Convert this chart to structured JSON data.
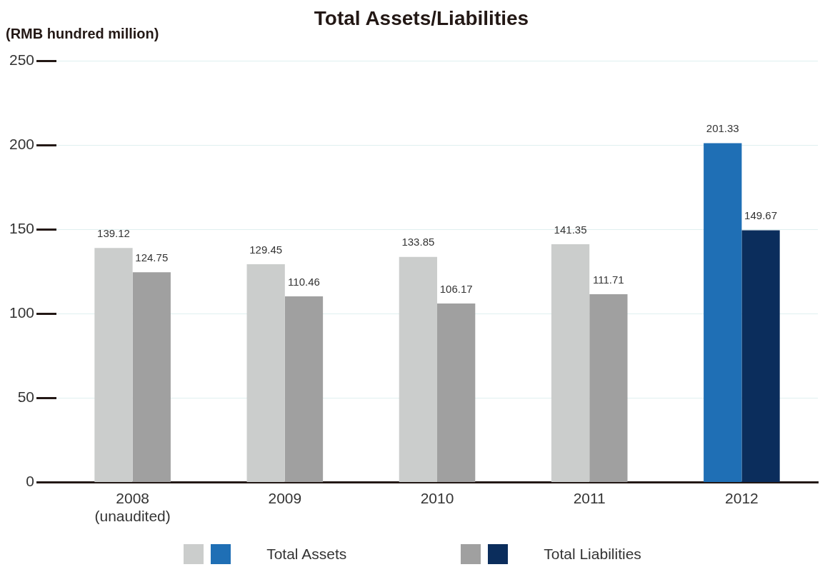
{
  "chart_data": {
    "type": "bar",
    "title": "Total Assets/Liabilities",
    "ylabel": "(RMB hundred million)",
    "categories": [
      "2008\n(unaudited)",
      "2009",
      "2010",
      "2011",
      "2012"
    ],
    "series": [
      {
        "name": "Total Assets",
        "colors": [
          "#cbcdcc",
          "#cbcdcc",
          "#cbcdcc",
          "#cbcdcc",
          "#1f6fb5"
        ],
        "values": [
          139.12,
          129.45,
          133.85,
          141.35,
          201.33
        ]
      },
      {
        "name": "Total Liabilities",
        "colors": [
          "#a0a0a0",
          "#a0a0a0",
          "#a0a0a0",
          "#a0a0a0",
          "#0b2d5c"
        ],
        "values": [
          124.75,
          110.46,
          106.17,
          111.71,
          149.67
        ]
      }
    ],
    "ylim": [
      0,
      250
    ],
    "yticks": [
      0,
      50,
      100,
      150,
      200,
      250
    ],
    "grid": "y",
    "data_labels": true,
    "legend": "bottom"
  }
}
